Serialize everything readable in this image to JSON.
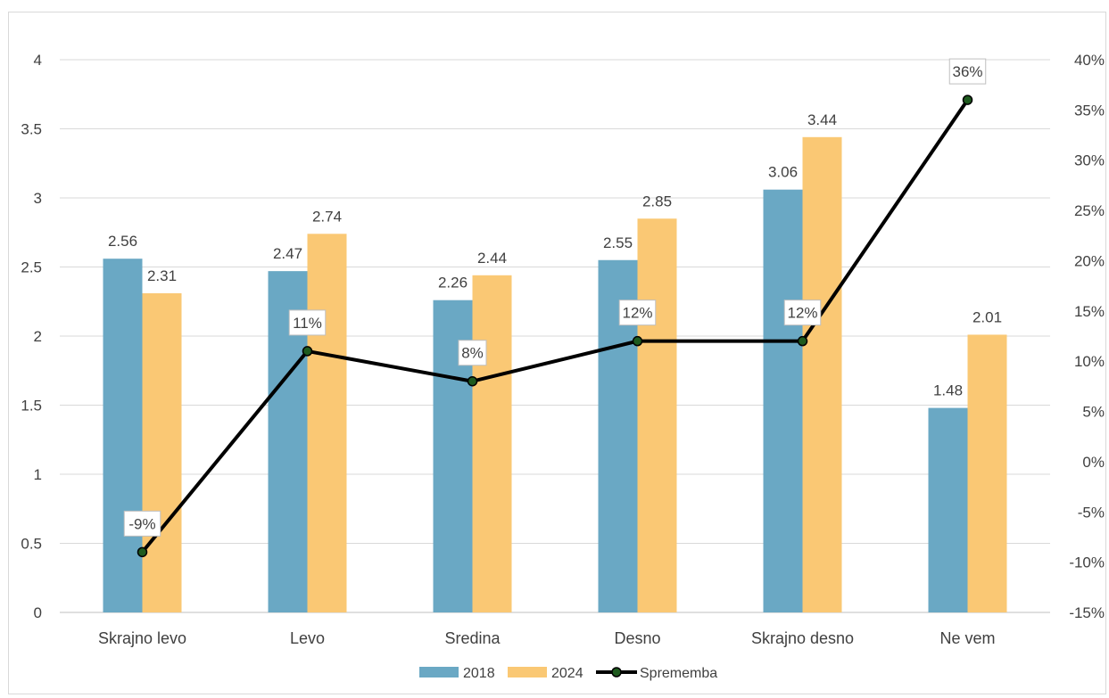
{
  "chart_data": {
    "type": "bar",
    "categories": [
      "Skrajno levo",
      "Levo",
      "Sredina",
      "Desno",
      "Skrajno desno",
      "Ne vem"
    ],
    "series": [
      {
        "name": "2018",
        "type": "bar",
        "color": "#6aa8c4",
        "values": [
          2.56,
          2.47,
          2.26,
          2.55,
          3.06,
          1.48
        ],
        "labels": [
          "2.56",
          "2.47",
          "2.26",
          "2.55",
          "3.06",
          "1.48"
        ]
      },
      {
        "name": "2024",
        "type": "bar",
        "color": "#fac874",
        "values": [
          2.31,
          2.74,
          2.44,
          2.85,
          3.44,
          2.01
        ],
        "labels": [
          "2.31",
          "2.74",
          "2.44",
          "2.85",
          "3.44",
          "2.01"
        ]
      },
      {
        "name": "Sprememba",
        "type": "line",
        "axis": "right",
        "color": "#000000",
        "marker_color": "#1e5a1e",
        "values": [
          -9,
          11,
          8,
          12,
          12,
          36
        ],
        "labels": [
          "-9%",
          "11%",
          "8%",
          "12%",
          "12%",
          "36%"
        ]
      }
    ],
    "y_left": {
      "min": 0,
      "max": 4,
      "ticks": [
        "0",
        "0.5",
        "1",
        "1.5",
        "2",
        "2.5",
        "3",
        "3.5",
        "4"
      ]
    },
    "y_right": {
      "min": -15,
      "max": 40,
      "ticks": [
        "-15%",
        "-10%",
        "-5%",
        "0%",
        "5%",
        "10%",
        "15%",
        "20%",
        "25%",
        "30%",
        "35%",
        "40%"
      ]
    },
    "grid": true,
    "legend_position": "bottom"
  }
}
